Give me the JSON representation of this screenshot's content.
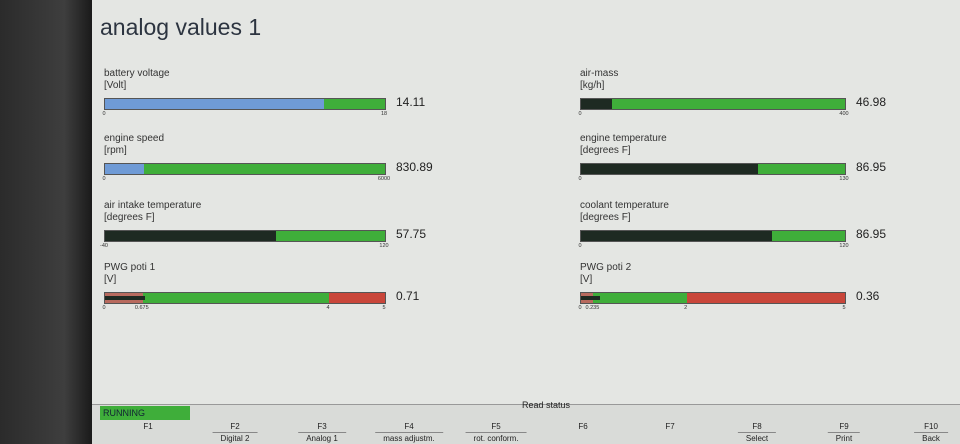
{
  "title": "analog values 1",
  "gauges": [
    {
      "label": "battery voltage",
      "unit": "[Volt]",
      "ticks": [
        0,
        18
      ],
      "value": 14.11,
      "fill_color": "#6f9bd6"
    },
    {
      "label": "engine speed",
      "unit": "[rpm]",
      "ticks": [
        0,
        6000
      ],
      "value": 830.89,
      "fill_color": "#6f9bd6"
    },
    {
      "label": "air intake temperature",
      "unit": "[degrees F]",
      "ticks": [
        -40,
        120
      ],
      "value": 57.75,
      "fill_color": "#1e2a22"
    },
    {
      "label": "PWG poti 1",
      "unit": "[V]",
      "ticks": [
        0,
        0.675,
        4,
        5
      ],
      "value": 0.71,
      "fill_color": "#1e2a22"
    },
    {
      "label": "air-mass",
      "unit": "[kg/h]",
      "ticks": [
        0,
        400
      ],
      "value": 46.98,
      "fill_color": "#1e2a22"
    },
    {
      "label": "engine temperature",
      "unit": "[degrees F]",
      "ticks": [
        0,
        130
      ],
      "value": 86.95,
      "fill_color": "#1e2a22"
    },
    {
      "label": "coolant temperature",
      "unit": "[degrees F]",
      "ticks": [
        0,
        120
      ],
      "value": 86.95,
      "fill_color": "#1e2a22"
    },
    {
      "label": "PWG poti 2",
      "unit": "[V]",
      "ticks": [
        0,
        0.235,
        2,
        5
      ],
      "value": 0.36,
      "fill_color": "#1e2a22"
    }
  ],
  "status": {
    "state": "RUNNING",
    "action": "Read status"
  },
  "keys": [
    {
      "key": "F1"
    },
    {
      "key": "F2",
      "label": "Digital 2"
    },
    {
      "key": "F3",
      "label": "Analog 1"
    },
    {
      "key": "F4",
      "label": "mass adjustm."
    },
    {
      "key": "F5",
      "label": "rot. conform."
    },
    {
      "key": "F6"
    },
    {
      "key": "F7"
    },
    {
      "key": "F8",
      "label": "Select"
    },
    {
      "key": "F9",
      "label": "Print"
    },
    {
      "key": "F10",
      "label": "Back"
    }
  ]
}
